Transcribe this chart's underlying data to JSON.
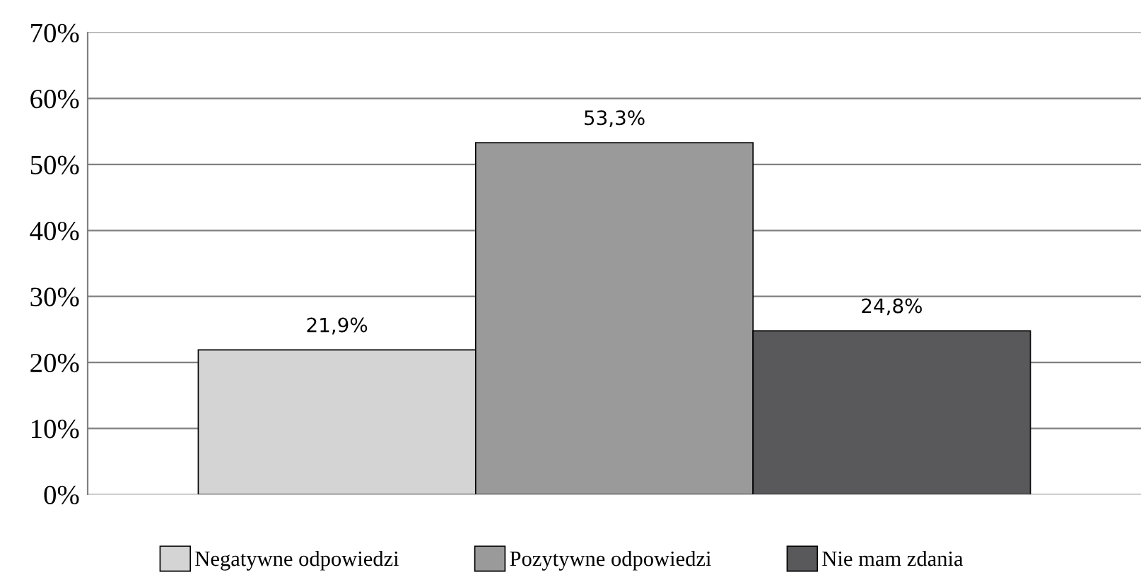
{
  "chart_data": {
    "type": "bar",
    "categories": [
      null
    ],
    "series": [
      {
        "name": "Negatywne odpowiedzi",
        "color": "#d4d4d4",
        "values": [
          21.9
        ],
        "value_labels": [
          "21,9%"
        ]
      },
      {
        "name": "Pozytywne odpowiedzi",
        "color": "#9a9a9b",
        "values": [
          53.3
        ],
        "value_labels": [
          "53,3%"
        ]
      },
      {
        "name": "Nie mam zdania",
        "color": "#59595b",
        "values": [
          24.8
        ],
        "value_labels": [
          "24,8%"
        ]
      }
    ],
    "ylim": [
      0,
      70
    ],
    "yticks": [
      {
        "value": 0,
        "label": "0%"
      },
      {
        "value": 10,
        "label": "10%"
      },
      {
        "value": 20,
        "label": "20%"
      },
      {
        "value": 30,
        "label": "30%"
      },
      {
        "value": 40,
        "label": "40%"
      },
      {
        "value": 50,
        "label": "50%"
      },
      {
        "value": 60,
        "label": "60%"
      },
      {
        "value": 70,
        "label": "70%"
      }
    ],
    "grid": "y",
    "legend": "bottom"
  }
}
